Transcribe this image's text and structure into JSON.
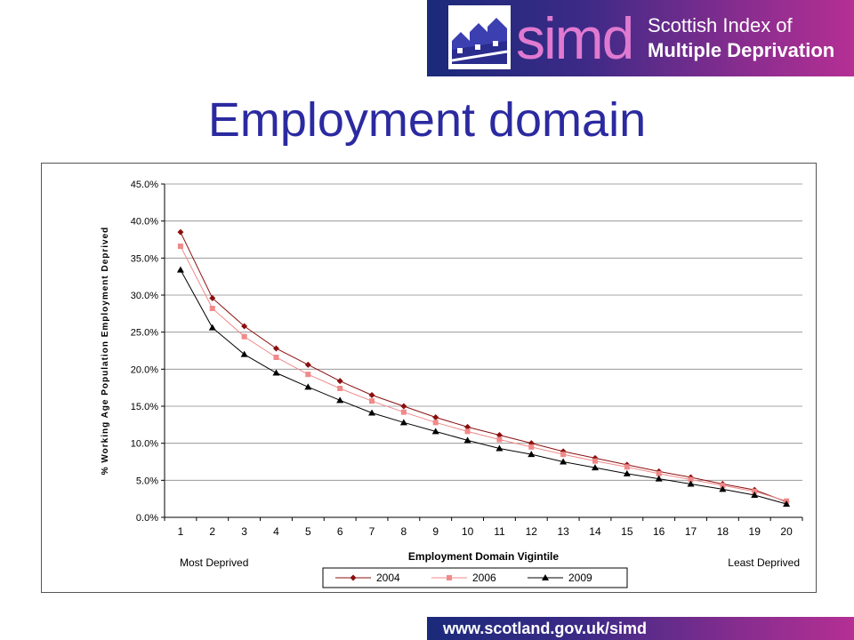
{
  "header": {
    "logo_word": "simd",
    "logo_line1": "Scottish Index of",
    "logo_line2": "Multiple Deprivation"
  },
  "slide_title": "Employment domain",
  "footer_url": "www.scotland.gov.uk/simd",
  "chart_data": {
    "type": "line",
    "title": "",
    "xlabel": "Employment Domain Vigintile",
    "ylabel": "% Working Age Population Employment Deprived",
    "x": [
      1,
      2,
      3,
      4,
      5,
      6,
      7,
      8,
      9,
      10,
      11,
      12,
      13,
      14,
      15,
      16,
      17,
      18,
      19,
      20
    ],
    "ylim": [
      0,
      45
    ],
    "yticks": [
      "0.0%",
      "5.0%",
      "10.0%",
      "15.0%",
      "20.0%",
      "25.0%",
      "30.0%",
      "35.0%",
      "40.0%",
      "45.0%"
    ],
    "ytick_values": [
      0,
      5,
      10,
      15,
      20,
      25,
      30,
      35,
      40,
      45
    ],
    "x_left_note": "Most Deprived",
    "x_right_note": "Least Deprived",
    "grid": true,
    "legend_position": "bottom",
    "series": [
      {
        "name": "2004",
        "color": "#8b0f0f",
        "marker": "diamond",
        "values": [
          38.5,
          29.6,
          25.8,
          22.8,
          20.6,
          18.4,
          16.5,
          15.0,
          13.5,
          12.2,
          11.1,
          10.0,
          8.9,
          8.0,
          7.1,
          6.2,
          5.4,
          4.5,
          3.7,
          2.1
        ]
      },
      {
        "name": "2006",
        "color": "#f08a8a",
        "marker": "square",
        "values": [
          36.6,
          28.2,
          24.4,
          21.6,
          19.3,
          17.4,
          15.7,
          14.2,
          12.8,
          11.6,
          10.5,
          9.5,
          8.5,
          7.6,
          6.8,
          5.9,
          5.1,
          4.3,
          3.5,
          2.2
        ]
      },
      {
        "name": "2009",
        "color": "#000000",
        "marker": "triangle",
        "values": [
          33.4,
          25.6,
          22.0,
          19.5,
          17.6,
          15.8,
          14.1,
          12.8,
          11.6,
          10.4,
          9.3,
          8.5,
          7.5,
          6.7,
          5.9,
          5.2,
          4.5,
          3.8,
          3.0,
          1.8
        ]
      }
    ]
  }
}
